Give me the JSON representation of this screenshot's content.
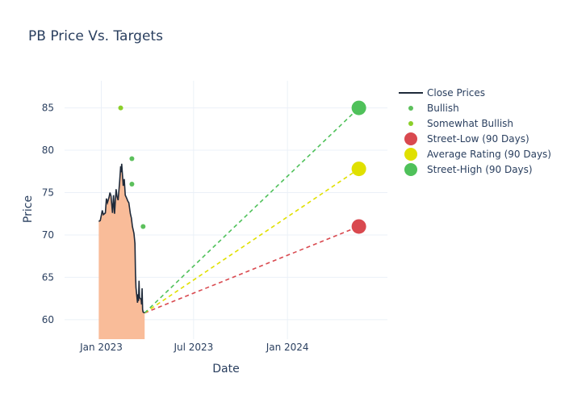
{
  "chart_data": {
    "type": "line",
    "title": "PB Price Vs. Targets",
    "xlabel": "Date",
    "ylabel": "Price",
    "x_range": [
      "2022-10-21",
      "2024-07-15"
    ],
    "y_range": [
      57.7,
      88.2
    ],
    "x_ticks": [
      {
        "date": "2023-01-01",
        "label": "Jan 2023"
      },
      {
        "date": "2023-07-01",
        "label": "Jul 2023"
      },
      {
        "date": "2024-01-01",
        "label": "Jan 2024"
      }
    ],
    "y_ticks": [
      60,
      65,
      70,
      75,
      80,
      85
    ],
    "grid": true,
    "legend_position": "right",
    "fill_base": 57.7,
    "close_prices": {
      "name": "Close Prices",
      "color": "#1f2a3a",
      "fill": "#f9bc99",
      "points": [
        [
          "2022-12-27",
          71.6
        ],
        [
          "2022-12-30",
          71.7
        ],
        [
          "2023-01-03",
          72.9
        ],
        [
          "2023-01-05",
          72.4
        ],
        [
          "2023-01-09",
          72.6
        ],
        [
          "2023-01-11",
          74.3
        ],
        [
          "2023-01-13",
          73.8
        ],
        [
          "2023-01-16",
          74.4
        ],
        [
          "2023-01-18",
          75.0
        ],
        [
          "2023-01-20",
          74.6
        ],
        [
          "2023-01-23",
          72.6
        ],
        [
          "2023-01-25",
          74.7
        ],
        [
          "2023-01-27",
          72.5
        ],
        [
          "2023-01-30",
          75.4
        ],
        [
          "2023-02-01",
          74.5
        ],
        [
          "2023-02-03",
          74.1
        ],
        [
          "2023-02-06",
          76.3
        ],
        [
          "2023-02-08",
          78.1
        ],
        [
          "2023-02-09",
          77.4
        ],
        [
          "2023-02-10",
          78.4
        ],
        [
          "2023-02-13",
          75.8
        ],
        [
          "2023-02-15",
          76.6
        ],
        [
          "2023-02-17",
          74.7
        ],
        [
          "2023-02-20",
          74.3
        ],
        [
          "2023-02-22",
          74.0
        ],
        [
          "2023-02-24",
          73.8
        ],
        [
          "2023-02-27",
          72.5
        ],
        [
          "2023-03-01",
          72.0
        ],
        [
          "2023-03-03",
          71.0
        ],
        [
          "2023-03-06",
          70.2
        ],
        [
          "2023-03-08",
          69.0
        ],
        [
          "2023-03-09",
          65.5
        ],
        [
          "2023-03-10",
          63.8
        ],
        [
          "2023-03-13",
          62.0
        ],
        [
          "2023-03-14",
          63.0
        ],
        [
          "2023-03-15",
          62.2
        ],
        [
          "2023-03-16",
          64.6
        ],
        [
          "2023-03-17",
          62.6
        ],
        [
          "2023-03-20",
          62.4
        ],
        [
          "2023-03-21",
          61.8
        ],
        [
          "2023-03-22",
          63.7
        ],
        [
          "2023-03-23",
          61.2
        ],
        [
          "2023-03-24",
          60.9
        ],
        [
          "2023-03-27",
          60.8
        ]
      ]
    },
    "ratings": [
      {
        "name": "Bullish",
        "color": "#5cc05c",
        "points": [
          [
            "2023-03-02",
            79.0
          ],
          [
            "2023-03-02",
            76.0
          ],
          [
            "2023-03-24",
            71.0
          ]
        ]
      },
      {
        "name": "Somewhat Bullish",
        "color": "#8bcf2a",
        "points": [
          [
            "2023-02-08",
            85.0
          ]
        ]
      }
    ],
    "targets": {
      "start": [
        "2023-03-27",
        60.8
      ],
      "date": "2024-05-20",
      "items": [
        {
          "name": "Street-Low (90 Days)",
          "value": 71.0,
          "color": "#d9494f"
        },
        {
          "name": "Average Rating (90 Days)",
          "value": 77.8,
          "color": "#e0e000"
        },
        {
          "name": "Street-High (90 Days)",
          "value": 85.0,
          "color": "#4fc15a"
        }
      ]
    },
    "legend": [
      {
        "label": "Close Prices",
        "kind": "line",
        "color": "#1f2a3a"
      },
      {
        "label": "Bullish",
        "kind": "small-dot",
        "color": "#5cc05c"
      },
      {
        "label": "Somewhat Bullish",
        "kind": "small-dot",
        "color": "#8bcf2a"
      },
      {
        "label": "Street-Low (90 Days)",
        "kind": "big-dot",
        "color": "#d9494f"
      },
      {
        "label": "Average Rating (90 Days)",
        "kind": "big-dot",
        "color": "#e0e000"
      },
      {
        "label": "Street-High (90 Days)",
        "kind": "big-dot",
        "color": "#4fc15a"
      }
    ]
  }
}
